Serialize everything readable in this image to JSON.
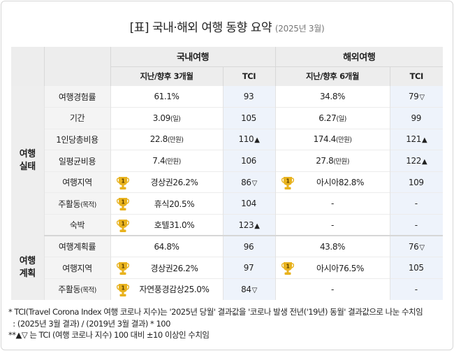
{
  "title": "[표] 국내·해외 여행 동향 요약",
  "subtitle": "(2025년 3월)",
  "header": {
    "domestic": "국내여행",
    "overseas": "해외여행",
    "domestic_period": "지난/향후 3개월",
    "overseas_period": "지난/향후 6개월",
    "tci": "TCI"
  },
  "groups": {
    "actual": [
      "여행",
      "실태"
    ],
    "plan": [
      "여행",
      "계획"
    ]
  },
  "rows": [
    {
      "label": "여행경험률",
      "label_sub": "",
      "d_val": "61.1%",
      "d_unit": "",
      "d_trophy": false,
      "d_tci": "93",
      "d_mark": "",
      "o_val": "34.8%",
      "o_unit": "",
      "o_trophy": false,
      "o_tci": "79",
      "o_mark": "▽"
    },
    {
      "label": "기간",
      "label_sub": "",
      "d_val": "3.09",
      "d_unit": "(일)",
      "d_trophy": false,
      "d_tci": "105",
      "d_mark": "",
      "o_val": "6.27",
      "o_unit": "(일)",
      "o_trophy": false,
      "o_tci": "99",
      "o_mark": ""
    },
    {
      "label": "1인당총비용",
      "label_sub": "",
      "d_val": "22.8",
      "d_unit": "(만원)",
      "d_trophy": false,
      "d_tci": "110",
      "d_mark": "▲",
      "o_val": "174.4",
      "o_unit": "(만원)",
      "o_trophy": false,
      "o_tci": "121",
      "o_mark": "▲"
    },
    {
      "label": "일평균비용",
      "label_sub": "",
      "d_val": "7.4",
      "d_unit": "(만원)",
      "d_trophy": false,
      "d_tci": "106",
      "d_mark": "",
      "o_val": "27.8",
      "o_unit": "(만원)",
      "o_trophy": false,
      "o_tci": "122",
      "o_mark": "▲"
    },
    {
      "label": "여행지역",
      "label_sub": "",
      "d_val": "경상권26.2%",
      "d_unit": "",
      "d_trophy": true,
      "d_tci": "86",
      "d_mark": "▽",
      "o_val": "아시아82.8%",
      "o_unit": "",
      "o_trophy": true,
      "o_tci": "109",
      "o_mark": ""
    },
    {
      "label": "주활동",
      "label_sub": "(목적)",
      "d_val": "휴식20.5%",
      "d_unit": "",
      "d_trophy": true,
      "d_tci": "104",
      "d_mark": "",
      "o_val": "-",
      "o_unit": "",
      "o_trophy": false,
      "o_tci": "-",
      "o_mark": ""
    },
    {
      "label": "숙박",
      "label_sub": "",
      "d_val": "호텔31.0%",
      "d_unit": "",
      "d_trophy": true,
      "d_tci": "123",
      "d_mark": "▲",
      "o_val": "-",
      "o_unit": "",
      "o_trophy": false,
      "o_tci": "-",
      "o_mark": ""
    },
    {
      "label": "여행계획률",
      "label_sub": "",
      "d_val": "64.8%",
      "d_unit": "",
      "d_trophy": false,
      "d_tci": "96",
      "d_mark": "",
      "o_val": "43.8%",
      "o_unit": "",
      "o_trophy": false,
      "o_tci": "76",
      "o_mark": "▽"
    },
    {
      "label": "여행지역",
      "label_sub": "",
      "d_val": "경상권26.2%",
      "d_unit": "",
      "d_trophy": true,
      "d_tci": "97",
      "d_mark": "",
      "o_val": "아시아76.5%",
      "o_unit": "",
      "o_trophy": true,
      "o_tci": "105",
      "o_mark": ""
    },
    {
      "label": "주활동",
      "label_sub": "(목적)",
      "d_val": "자연풍경감상25.0%",
      "d_unit": "",
      "d_trophy": true,
      "d_tci": "84",
      "d_mark": "▽",
      "o_val": "-",
      "o_unit": "",
      "o_trophy": false,
      "o_tci": "-",
      "o_mark": ""
    }
  ],
  "trophy_text": "1",
  "notes": [
    "* TCI(Travel Corona Index 여행 코로나 지수)는 '2025년 당월' 결과값을 '코로나 발생 전년('19년) 동월' 결과값으로 나눈 수치임",
    "  : (2025년 3월 결과) / (2019년 3월 결과) * 100",
    "**▲▽ 는 TCI (여행 코로나 지수) 100 대비  ±10 이상인 수치임"
  ],
  "colors": {
    "tci_bg": "#eef3fb",
    "header_bg": "#ededed",
    "trophy_gold": "#e8b21d"
  }
}
